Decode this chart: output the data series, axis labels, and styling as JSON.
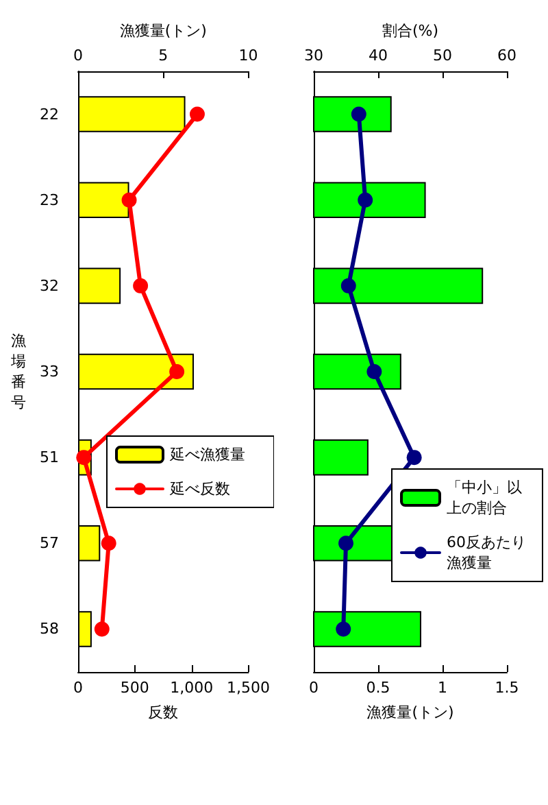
{
  "chart_data": [
    {
      "type": "bar",
      "orientation": "horizontal",
      "ylabel": "漁場番号",
      "categories": [
        "22",
        "23",
        "32",
        "33",
        "51",
        "57",
        "58"
      ],
      "x2label": "漁獲量(トン)",
      "x2lim": [
        0,
        10
      ],
      "x2ticks": [
        0,
        5,
        10
      ],
      "xlabel": "反数",
      "xlim": [
        0,
        1500
      ],
      "xticks": [
        0,
        500,
        {
          "value": 1000,
          "label": "1,000"
        },
        {
          "value": 1500,
          "label": "1,500"
        }
      ],
      "legend": "right",
      "marker": "circle",
      "line_style": "solid",
      "grid": false,
      "series": [
        {
          "axis": "x2",
          "name": "延べ漁獲量",
          "color": "#ffff00",
          "values": [
            6.3,
            3.0,
            2.5,
            6.8,
            0.8,
            1.3,
            0.8
          ]
        },
        {
          "type": "line",
          "name": "延べ反数",
          "color": "#ff0000",
          "values": [
            1050,
            450,
            550,
            870,
            50,
            270,
            210
          ]
        }
      ]
    },
    {
      "type": "bar",
      "orientation": "horizontal",
      "categories": [
        "22",
        "23",
        "32",
        "33",
        "51",
        "57",
        "58"
      ],
      "tick_labels": "x",
      "x2label": "割合(%)",
      "x2lim": [
        30,
        60
      ],
      "x2ticks": [
        30,
        40,
        50,
        60
      ],
      "xlabel": "漁獲量(トン)",
      "xlim": [
        0,
        1.5
      ],
      "xticks": [
        0,
        0.5,
        1,
        1.5
      ],
      "legend": "bottom right",
      "marker": "circle",
      "line_style": "solid",
      "grid": false,
      "series": [
        {
          "axis": "x2",
          "name": "「中小」以上の割合",
          "color": "#00ff00",
          "values": [
            42.1,
            47.4,
            56.3,
            43.6,
            38.5,
            42.5,
            46.7
          ]
        },
        {
          "type": "line",
          "name": "60反あたり漁獲量",
          "color": "#000080",
          "values": [
            0.35,
            0.4,
            0.27,
            0.47,
            0.78,
            0.25,
            0.23
          ]
        }
      ]
    }
  ]
}
